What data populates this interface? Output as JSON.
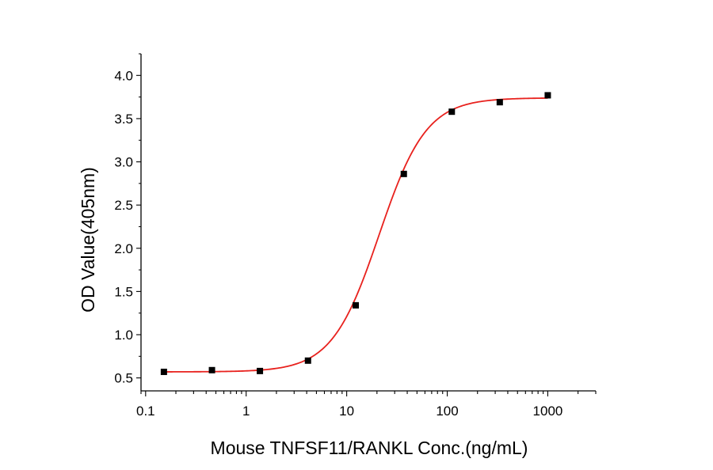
{
  "chart_data": {
    "type": "scatter",
    "xlabel": "Mouse TNFSF11/RANKL Conc.(ng/mL)",
    "ylabel": "OD Value(405nm)",
    "x_scale": "log",
    "xlim": [
      0.09,
      3000
    ],
    "ylim": [
      0.35,
      4.25
    ],
    "x_ticks": [
      {
        "value": 0.1,
        "label": "0.1"
      },
      {
        "value": 1,
        "label": "1"
      },
      {
        "value": 10,
        "label": "10"
      },
      {
        "value": 100,
        "label": "100"
      },
      {
        "value": 1000,
        "label": "1000"
      }
    ],
    "y_ticks": [
      {
        "value": 0.5,
        "label": "0.5"
      },
      {
        "value": 1.0,
        "label": "1.0"
      },
      {
        "value": 1.5,
        "label": "1.5"
      },
      {
        "value": 2.0,
        "label": "2.0"
      },
      {
        "value": 2.5,
        "label": "2.5"
      },
      {
        "value": 3.0,
        "label": "3.0"
      },
      {
        "value": 3.5,
        "label": "3.5"
      },
      {
        "value": 4.0,
        "label": "4.0"
      }
    ],
    "points": [
      {
        "x": 0.152,
        "y": 0.57
      },
      {
        "x": 0.457,
        "y": 0.59
      },
      {
        "x": 1.37,
        "y": 0.58
      },
      {
        "x": 4.12,
        "y": 0.7
      },
      {
        "x": 12.3,
        "y": 1.34
      },
      {
        "x": 37.0,
        "y": 2.86
      },
      {
        "x": 111,
        "y": 3.58
      },
      {
        "x": 333,
        "y": 3.69
      },
      {
        "x": 1000,
        "y": 3.77
      }
    ],
    "fit_curve": {
      "model": "4PL",
      "bottom": 0.57,
      "top": 3.74,
      "ec50": 21,
      "hill": 1.85
    },
    "grid": false,
    "colors": {
      "marker": "#000000",
      "curve": "#e8211d",
      "axis": "#000000"
    }
  }
}
